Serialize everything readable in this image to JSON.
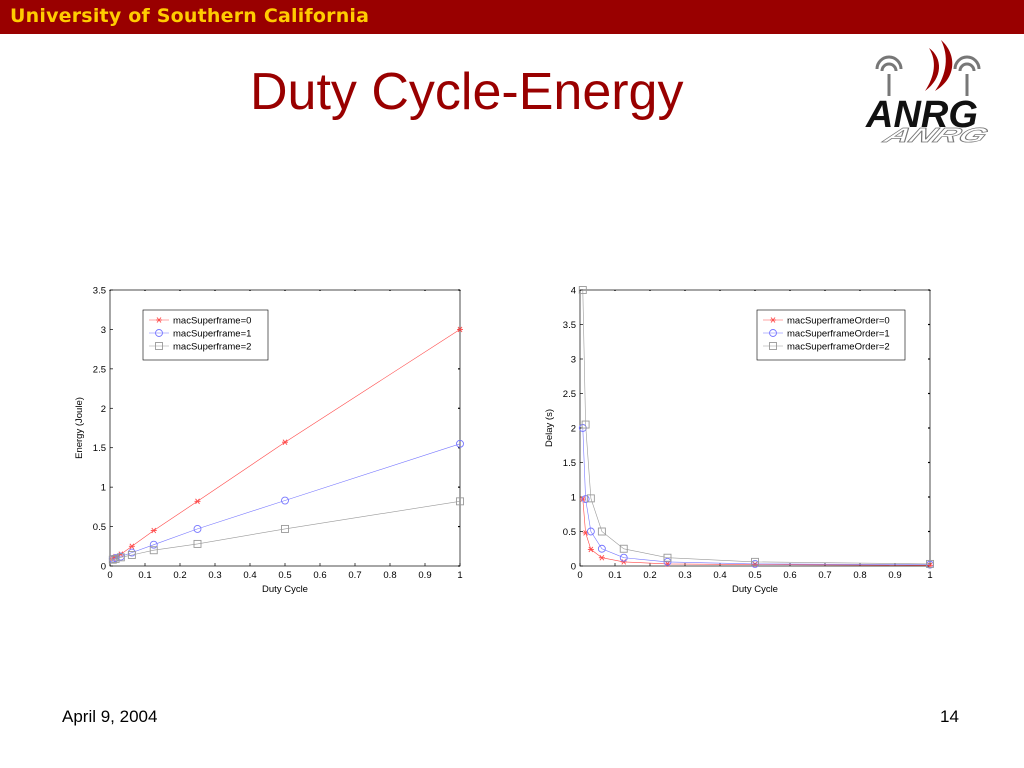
{
  "header": {
    "university": "University of Southern California"
  },
  "slide": {
    "title": "Duty Cycle-Energy",
    "date": "April 9, 2004",
    "page_number": "14"
  },
  "logo": {
    "text": "ANRG"
  },
  "colors": {
    "brand": "#990000",
    "banner_text": "#ffcc00"
  },
  "chart_data": [
    {
      "type": "line",
      "title": "",
      "xlabel": "Duty Cycle",
      "ylabel": "Energy (Joule)",
      "xlim": [
        0,
        1
      ],
      "ylim": [
        0,
        3.5
      ],
      "xticks": [
        "0",
        "0.1",
        "0.2",
        "0.3",
        "0.4",
        "0.5",
        "0.6",
        "0.7",
        "0.8",
        "0.9",
        "1"
      ],
      "yticks": [
        "0",
        "0.5",
        "1",
        "1.5",
        "2",
        "2.5",
        "3",
        "3.5"
      ],
      "legend_position": "top-left",
      "series": [
        {
          "name": "macSuperframe=0",
          "color": "#ff4a4a",
          "marker": "star",
          "points": [
            [
              0.008,
              0.1
            ],
            [
              0.016,
              0.12
            ],
            [
              0.031,
              0.15
            ],
            [
              0.0625,
              0.25
            ],
            [
              0.125,
              0.45
            ],
            [
              0.25,
              0.82
            ],
            [
              0.5,
              1.57
            ],
            [
              1,
              3.0
            ]
          ]
        },
        {
          "name": "macSuperframe=1",
          "color": "#7777ff",
          "marker": "circle",
          "points": [
            [
              0.008,
              0.09
            ],
            [
              0.016,
              0.1
            ],
            [
              0.031,
              0.12
            ],
            [
              0.0625,
              0.17
            ],
            [
              0.125,
              0.27
            ],
            [
              0.25,
              0.47
            ],
            [
              0.5,
              0.83
            ],
            [
              1,
              1.55
            ]
          ]
        },
        {
          "name": "macSuperframe=2",
          "color": "#999999",
          "marker": "square",
          "points": [
            [
              0.008,
              0.08
            ],
            [
              0.016,
              0.09
            ],
            [
              0.031,
              0.11
            ],
            [
              0.0625,
              0.14
            ],
            [
              0.125,
              0.2
            ],
            [
              0.25,
              0.28
            ],
            [
              0.5,
              0.47
            ],
            [
              1,
              0.82
            ]
          ]
        }
      ]
    },
    {
      "type": "line",
      "title": "",
      "xlabel": "Duty Cycle",
      "ylabel": "Delay (s)",
      "xlim": [
        0,
        1
      ],
      "ylim": [
        0,
        4
      ],
      "xticks": [
        "0",
        "0.1",
        "0.2",
        "0.3",
        "0.4",
        "0.5",
        "0.6",
        "0.7",
        "0.8",
        "0.9",
        "1"
      ],
      "yticks": [
        "0",
        "0.5",
        "1",
        "1.5",
        "2",
        "2.5",
        "3",
        "3.5",
        "4"
      ],
      "legend_position": "top-right",
      "series": [
        {
          "name": "macSuperframeOrder=0",
          "color": "#ff4a4a",
          "marker": "star",
          "points": [
            [
              0.008,
              0.97
            ],
            [
              0.016,
              0.48
            ],
            [
              0.031,
              0.24
            ],
            [
              0.0625,
              0.12
            ],
            [
              0.125,
              0.06
            ],
            [
              0.25,
              0.03
            ],
            [
              0.5,
              0.02
            ],
            [
              1,
              0.01
            ]
          ]
        },
        {
          "name": "macSuperframeOrder=1",
          "color": "#7777ff",
          "marker": "circle",
          "points": [
            [
              0.008,
              2.0
            ],
            [
              0.016,
              0.97
            ],
            [
              0.031,
              0.5
            ],
            [
              0.0625,
              0.25
            ],
            [
              0.125,
              0.12
            ],
            [
              0.25,
              0.06
            ],
            [
              0.5,
              0.03
            ],
            [
              1,
              0.02
            ]
          ]
        },
        {
          "name": "macSuperframeOrder=2",
          "color": "#999999",
          "marker": "square",
          "points": [
            [
              0.008,
              4.0
            ],
            [
              0.016,
              2.05
            ],
            [
              0.031,
              0.98
            ],
            [
              0.0625,
              0.5
            ],
            [
              0.125,
              0.25
            ],
            [
              0.25,
              0.12
            ],
            [
              0.5,
              0.06
            ],
            [
              1,
              0.03
            ]
          ]
        }
      ]
    }
  ]
}
